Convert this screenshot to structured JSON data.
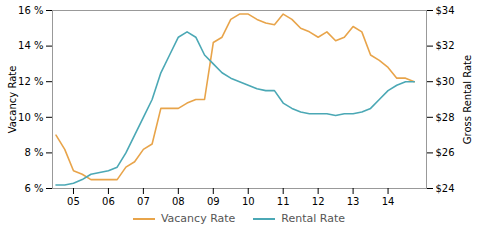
{
  "chart_data": {
    "type": "line",
    "x": [
      2004.5,
      2004.75,
      2005.0,
      2005.25,
      2005.5,
      2005.75,
      2006.0,
      2006.25,
      2006.5,
      2006.75,
      2007.0,
      2007.25,
      2007.5,
      2007.75,
      2008.0,
      2008.25,
      2008.5,
      2008.75,
      2009.0,
      2009.25,
      2009.5,
      2009.75,
      2010.0,
      2010.25,
      2010.5,
      2010.75,
      2011.0,
      2011.25,
      2011.5,
      2011.75,
      2012.0,
      2012.25,
      2012.5,
      2012.75,
      2013.0,
      2013.25,
      2013.5,
      2013.75,
      2014.0,
      2014.25,
      2014.5,
      2014.75
    ],
    "series": [
      {
        "name": "Vacancy Rate",
        "color": "#e8a44a",
        "values": [
          9.0,
          8.2,
          7.0,
          6.8,
          6.5,
          6.5,
          6.5,
          6.5,
          7.2,
          7.5,
          8.2,
          8.5,
          10.5,
          10.5,
          10.5,
          10.8,
          11.0,
          11.0,
          14.2,
          14.5,
          15.5,
          15.8,
          15.8,
          15.5,
          15.3,
          15.2,
          15.8,
          15.5,
          15.0,
          14.8,
          14.5,
          14.8,
          14.3,
          14.5,
          15.1,
          14.8,
          13.5,
          13.2,
          12.8,
          12.2,
          12.2,
          12.0
        ]
      },
      {
        "name": "Rental Rate",
        "color": "#4ba8b5",
        "axis": "y2",
        "values": [
          24.2,
          24.2,
          24.3,
          24.5,
          24.8,
          24.9,
          25.0,
          25.2,
          26.0,
          27.0,
          28.0,
          29.0,
          30.5,
          31.5,
          32.5,
          32.8,
          32.5,
          31.5,
          31.0,
          30.5,
          30.2,
          30.0,
          29.8,
          29.6,
          29.5,
          29.5,
          28.8,
          28.5,
          28.3,
          28.2,
          28.2,
          28.2,
          28.1,
          28.2,
          28.2,
          28.3,
          28.5,
          29.0,
          29.5,
          29.8,
          30.0,
          30.0
        ]
      }
    ],
    "ylabel": "Vacancy Rate",
    "y2label": "Gross Rental Rate",
    "xlim": [
      2004.4,
      2015.1
    ],
    "xticks": [
      {
        "value": 2005,
        "label": "05"
      },
      {
        "value": 2006,
        "label": "06"
      },
      {
        "value": 2007,
        "label": "07"
      },
      {
        "value": 2008,
        "label": "08"
      },
      {
        "value": 2009,
        "label": "09"
      },
      {
        "value": 2010,
        "label": "10"
      },
      {
        "value": 2011,
        "label": "11"
      },
      {
        "value": 2012,
        "label": "12"
      },
      {
        "value": 2013,
        "label": "13"
      },
      {
        "value": 2014,
        "label": "14"
      }
    ],
    "ylim": [
      6.0,
      16.0
    ],
    "yticks": [
      {
        "value": 6,
        "label": "6 %"
      },
      {
        "value": 8,
        "label": "8 %"
      },
      {
        "value": 10,
        "label": "10 %"
      },
      {
        "value": 12,
        "label": "12 %"
      },
      {
        "value": 14,
        "label": "14 %"
      },
      {
        "value": 16,
        "label": "16 %"
      }
    ],
    "y2lim": [
      24.0,
      34.0
    ],
    "y2ticks": [
      {
        "value": 24,
        "label": "$24"
      },
      {
        "value": 26,
        "label": "$26"
      },
      {
        "value": 28,
        "label": "$28"
      },
      {
        "value": 30,
        "label": "$30"
      },
      {
        "value": 32,
        "label": "$32"
      },
      {
        "value": 34,
        "label": "$34"
      }
    ],
    "grid": false,
    "legend": "bottom"
  }
}
